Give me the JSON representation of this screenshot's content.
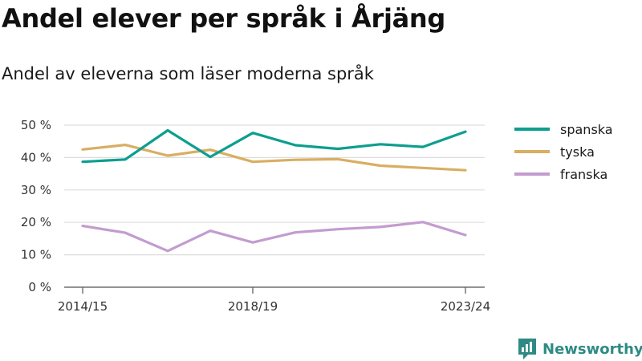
{
  "title": "Andel elever per språk i Årjäng",
  "subtitle": "Andel av eleverna som läser moderna språk",
  "brand": {
    "name": "Newsworthy",
    "icon": "newsworthy-logo-icon"
  },
  "chart_data": {
    "type": "line",
    "x": [
      "2014/15",
      "2015/16",
      "2016/17",
      "2017/18",
      "2018/19",
      "2019/20",
      "2020/21",
      "2021/22",
      "2022/23",
      "2023/24"
    ],
    "x_tick_labels": [
      "2014/15",
      "2018/19",
      "2023/24"
    ],
    "y_tick_labels": [
      "0 %",
      "10 %",
      "20 %",
      "30 %",
      "40 %",
      "50 %"
    ],
    "ylim": [
      0,
      50
    ],
    "grid": true,
    "legend_position": "right",
    "series": [
      {
        "name": "spanska",
        "color": "#0c9e8f",
        "values": [
          38.7,
          39.4,
          48.4,
          40.2,
          47.6,
          43.8,
          42.7,
          44.1,
          43.3,
          48.0
        ]
      },
      {
        "name": "tyska",
        "color": "#d9ae63",
        "values": [
          42.5,
          43.9,
          40.6,
          42.4,
          38.7,
          39.3,
          39.5,
          37.5,
          36.8,
          36.1
        ]
      },
      {
        "name": "franska",
        "color": "#c39ccf",
        "values": [
          18.9,
          16.8,
          11.2,
          17.4,
          13.8,
          16.9,
          17.9,
          18.6,
          20.1,
          16.1
        ]
      }
    ]
  }
}
